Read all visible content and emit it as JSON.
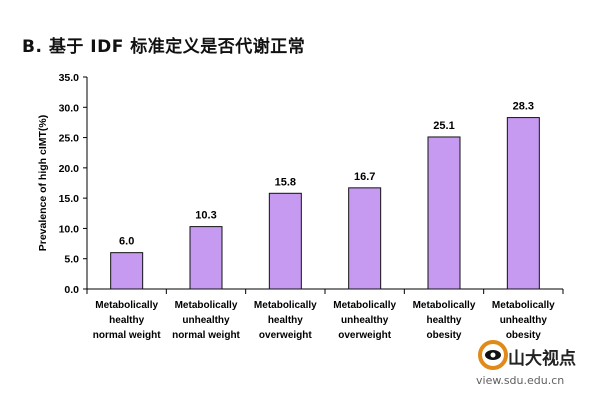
{
  "figure_title": "B. 基于 IDF 标准定义是否代谢正常",
  "watermark": {
    "name": "山大视点",
    "url": "view.sdu.edu.cn",
    "icon": "sdu-logo-icon",
    "colors": {
      "ring": "#e08a1a",
      "eye": "#111111"
    }
  },
  "colors": {
    "bar_fill": "#c79af2",
    "bar_stroke": "#111111",
    "axis": "#000000"
  },
  "chart_data": {
    "type": "bar",
    "title": "",
    "xlabel": "",
    "ylabel": "Prevalence of high cIMT(%)",
    "ylim": [
      0,
      35
    ],
    "yticks": [
      "0.0",
      "5.0",
      "10.0",
      "15.0",
      "20.0",
      "25.0",
      "30.0",
      "35.0"
    ],
    "grid": false,
    "categories": [
      [
        "Metabolically",
        "healthy",
        "normal weight"
      ],
      [
        "Metabolically",
        "unhealthy",
        "normal weight"
      ],
      [
        "Metabolically",
        "healthy",
        "overweight"
      ],
      [
        "Metabolically",
        "unhealthy",
        "overweight"
      ],
      [
        "Metabolically",
        "healthy",
        "obesity"
      ],
      [
        "Metabolically",
        "unhealthy",
        "obesity"
      ]
    ],
    "values": [
      6.0,
      10.3,
      15.8,
      16.7,
      25.1,
      28.3
    ],
    "data_labels": [
      "6.0",
      "10.3",
      "15.8",
      "16.7",
      "25.1",
      "28.3"
    ]
  }
}
